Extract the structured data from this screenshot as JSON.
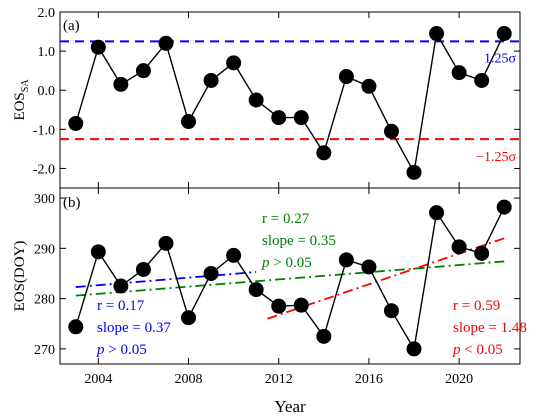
{
  "chart_data": [
    {
      "type": "line",
      "panel_label": "(a)",
      "ylabel_main": "EOS",
      "ylabel_sub": "SA",
      "ylim": [
        -2.5,
        2.0
      ],
      "yticks": [
        -2.0,
        -1.0,
        0.0,
        1.0,
        2.0
      ],
      "ytick_labels": [
        "-2.0",
        "-1.0",
        "0.0",
        "1.0",
        "2.0"
      ],
      "x": [
        2003,
        2004,
        2005,
        2006,
        2007,
        2008,
        2009,
        2010,
        2011,
        2012,
        2013,
        2014,
        2015,
        2016,
        2017,
        2018,
        2019,
        2020,
        2021,
        2022
      ],
      "series": [
        {
          "values": [
            -0.85,
            1.1,
            0.15,
            0.5,
            1.2,
            -0.8,
            0.25,
            0.7,
            -0.25,
            -0.7,
            -0.7,
            -1.6,
            0.35,
            0.1,
            -1.05,
            -2.1,
            1.45,
            0.45,
            0.25,
            1.45
          ],
          "color": "#000000"
        }
      ],
      "reference_lines": [
        {
          "y": 1.25,
          "label": "1.25σ",
          "color": "#0000ff"
        },
        {
          "y": -1.25,
          "label": "−1.25σ",
          "color": "#ff0000"
        }
      ],
      "grid": false
    },
    {
      "type": "line",
      "panel_label": "(b)",
      "ylabel": "EOS(DOY)",
      "xlabel": "Year",
      "ylim": [
        267,
        302
      ],
      "yticks": [
        270,
        280,
        290,
        300
      ],
      "ytick_labels": [
        "270",
        "280",
        "290",
        "300"
      ],
      "xlim": [
        2002.3,
        2022.7
      ],
      "xticks": [
        2004,
        2008,
        2012,
        2016,
        2020
      ],
      "xtick_labels": [
        "2004",
        "2008",
        "2012",
        "2016",
        "2020"
      ],
      "x": [
        2003,
        2004,
        2005,
        2006,
        2007,
        2008,
        2009,
        2010,
        2011,
        2012,
        2013,
        2014,
        2015,
        2016,
        2017,
        2018,
        2019,
        2020,
        2021,
        2022
      ],
      "series": [
        {
          "values": [
            274.4,
            289.3,
            282.5,
            285.8,
            291.0,
            276.2,
            285.0,
            288.6,
            281.8,
            278.5,
            278.7,
            272.5,
            287.7,
            286.3,
            277.6,
            270.0,
            297.1,
            290.3,
            289.0,
            298.2
          ],
          "color": "#000000"
        }
      ],
      "trend_lines": [
        {
          "x": [
            2003,
            2011
          ],
          "y": [
            282.3,
            285.3
          ],
          "color": "#0000ff",
          "r": "r = 0.17",
          "slope": "slope = 0.37",
          "p_symbol": "p",
          "p_rest": " > 0.05"
        },
        {
          "x": [
            2003,
            2022
          ],
          "y": [
            280.6,
            287.4
          ],
          "color": "#008000",
          "r": "r = 0.27",
          "slope": "slope = 0.35",
          "p_symbol": "p",
          "p_rest": " > 0.05"
        },
        {
          "x": [
            2011.5,
            2022
          ],
          "y": [
            276.0,
            292.0
          ],
          "color": "#ff0000",
          "r": "r = 0.59",
          "slope": "slope = 1.48",
          "p_symbol": "p",
          "p_rest": " < 0.05"
        }
      ],
      "grid": false
    }
  ]
}
